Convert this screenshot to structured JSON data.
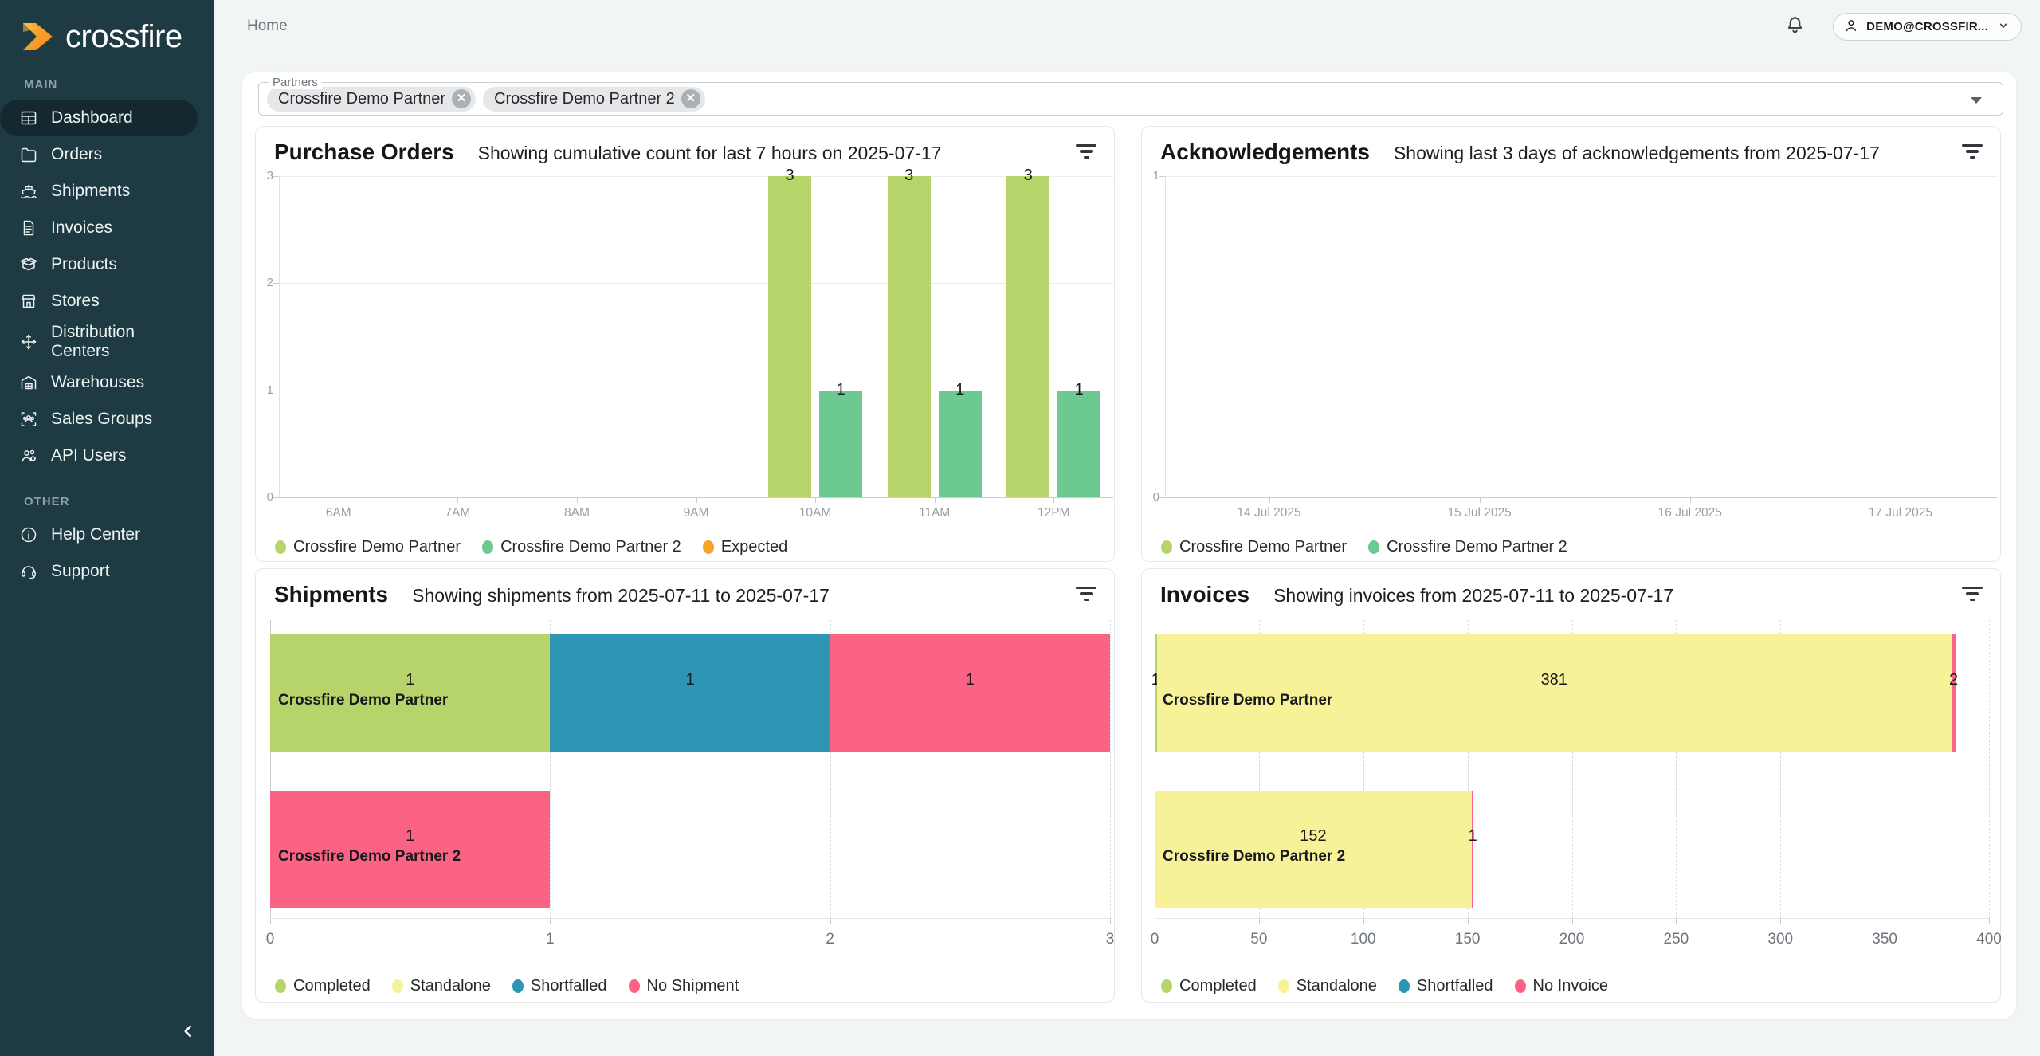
{
  "app": {
    "brand": "crossfire"
  },
  "topbar": {
    "breadcrumb": "Home",
    "user_menu": "DEMO@CROSSFIR..."
  },
  "sidebar": {
    "sections": [
      {
        "label": "MAIN",
        "items": [
          {
            "label": "Dashboard",
            "icon": "dashboard-table-icon",
            "active": true
          },
          {
            "label": "Orders",
            "icon": "folder-icon",
            "active": false
          },
          {
            "label": "Shipments",
            "icon": "ship-icon",
            "active": false
          },
          {
            "label": "Invoices",
            "icon": "document-icon",
            "active": false
          },
          {
            "label": "Products",
            "icon": "open-box-icon",
            "active": false
          },
          {
            "label": "Stores",
            "icon": "storefront-icon",
            "active": false
          },
          {
            "label": "Distribution Centers",
            "icon": "move-arrows-icon",
            "active": false
          },
          {
            "label": "Warehouses",
            "icon": "warehouse-icon",
            "active": false
          },
          {
            "label": "Sales Groups",
            "icon": "sales-groups-icon",
            "active": false
          },
          {
            "label": "API Users",
            "icon": "api-users-icon",
            "active": false
          }
        ]
      },
      {
        "label": "OTHER",
        "items": [
          {
            "label": "Help Center",
            "icon": "info-circle-icon",
            "active": false
          },
          {
            "label": "Support",
            "icon": "headset-icon",
            "active": false
          }
        ]
      }
    ]
  },
  "filters": {
    "label": "Partners",
    "chips": [
      {
        "text": "Crossfire Demo Partner"
      },
      {
        "text": "Crossfire Demo Partner 2"
      }
    ]
  },
  "colors": {
    "sidebar_bg": "#1e3a43",
    "sidebar_active": "#14292f",
    "page_bg": "#f1f5f4",
    "series": {
      "Crossfire Demo Partner": "#b7d46a",
      "Crossfire Demo Partner 2": "#6cc98f",
      "Expected": "#f7a229",
      "Completed": "#b7d46a",
      "Standalone": "#f7f298",
      "Shortfalled": "#2e96b5",
      "No Shipment": "#fb6384",
      "No Invoice": "#fb6384"
    }
  },
  "chart_data": [
    {
      "id": "purchase_orders",
      "type": "bar",
      "title": "Purchase Orders",
      "subtitle": "Showing cumulative count for last 7 hours on 2025-07-17",
      "categories": [
        "6AM",
        "7AM",
        "8AM",
        "9AM",
        "10AM",
        "11AM",
        "12PM"
      ],
      "series": [
        {
          "name": "Crossfire Demo Partner",
          "color": "#b7d46a",
          "values": [
            0,
            0,
            0,
            0,
            3,
            3,
            3
          ]
        },
        {
          "name": "Crossfire Demo Partner 2",
          "color": "#6cc98f",
          "values": [
            0,
            0,
            0,
            0,
            1,
            1,
            1
          ]
        },
        {
          "name": "Expected",
          "color": "#f7a229",
          "values": [
            0,
            0,
            0,
            0,
            0,
            0,
            0
          ]
        }
      ],
      "ylim": [
        0,
        3
      ],
      "yticks": [
        0,
        1,
        2,
        3
      ],
      "legend_position": "bottom"
    },
    {
      "id": "acknowledgements",
      "type": "bar",
      "title": "Acknowledgements",
      "subtitle": "Showing last 3 days of acknowledgements from 2025-07-17",
      "categories": [
        "14 Jul 2025",
        "15 Jul 2025",
        "16 Jul 2025",
        "17 Jul 2025"
      ],
      "series": [
        {
          "name": "Crossfire Demo Partner",
          "color": "#b7d46a",
          "values": [
            0,
            0,
            0,
            0
          ]
        },
        {
          "name": "Crossfire Demo Partner 2",
          "color": "#6cc98f",
          "values": [
            0,
            0,
            0,
            0
          ]
        }
      ],
      "ylim": [
        0,
        1
      ],
      "yticks": [
        0,
        1
      ],
      "legend_position": "bottom"
    },
    {
      "id": "shipments",
      "type": "stacked_bar_horizontal",
      "title": "Shipments",
      "subtitle": "Showing shipments from 2025-07-11 to 2025-07-17",
      "xlim": [
        0,
        3
      ],
      "xticks": [
        0,
        1,
        2,
        3
      ],
      "legend": [
        "Completed",
        "Standalone",
        "Shortfalled",
        "No Shipment"
      ],
      "rows": [
        {
          "label": "Crossfire Demo Partner",
          "segments": [
            {
              "name": "Completed",
              "value": 1
            },
            {
              "name": "Shortfalled",
              "value": 1
            },
            {
              "name": "No Shipment",
              "value": 1
            }
          ]
        },
        {
          "label": "Crossfire Demo Partner 2",
          "segments": [
            {
              "name": "No Shipment",
              "value": 1
            }
          ]
        }
      ]
    },
    {
      "id": "invoices",
      "type": "stacked_bar_horizontal",
      "title": "Invoices",
      "subtitle": "Showing invoices from 2025-07-11 to 2025-07-17",
      "xlim": [
        0,
        400
      ],
      "xticks": [
        0,
        50,
        100,
        150,
        200,
        250,
        300,
        350,
        400
      ],
      "legend": [
        "Completed",
        "Standalone",
        "Shortfalled",
        "No Invoice"
      ],
      "rows": [
        {
          "label": "Crossfire Demo Partner",
          "segments": [
            {
              "name": "Completed",
              "value": 1
            },
            {
              "name": "Standalone",
              "value": 381
            },
            {
              "name": "No Invoice",
              "value": 2
            }
          ]
        },
        {
          "label": "Crossfire Demo Partner 2",
          "segments": [
            {
              "name": "Standalone",
              "value": 152
            },
            {
              "name": "No Invoice",
              "value": 1
            }
          ]
        }
      ]
    }
  ]
}
